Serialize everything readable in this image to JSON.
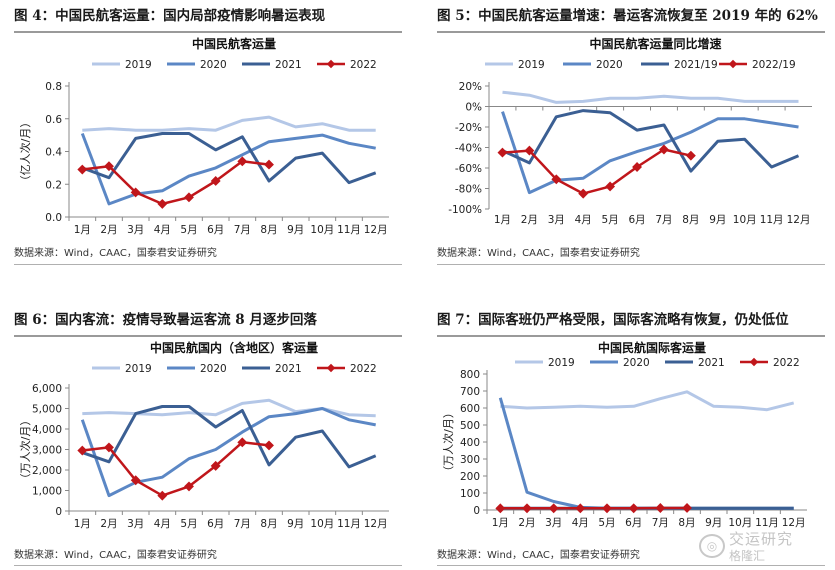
{
  "panels": [
    {
      "figure_title": "图 4：中国民航客运量：国内局部疫情影响暑运表现",
      "source": "数据来源：Wind，CAAC，国泰君安证券研究",
      "chart_data": {
        "type": "line",
        "title": "中国民航客运量",
        "xlabel": "",
        "ylabel": "（亿人次/月）",
        "categories": [
          "1月",
          "2月",
          "3月",
          "4月",
          "5月",
          "6月",
          "7月",
          "8月",
          "9月",
          "10月",
          "11月",
          "12月"
        ],
        "ylim": [
          0,
          0.8
        ],
        "yticks": [
          "0.0",
          "0.2",
          "0.4",
          "0.6",
          "0.8"
        ],
        "ytick_values": [
          0,
          0.2,
          0.4,
          0.6,
          0.8
        ],
        "grid": false,
        "legend": "top",
        "series": [
          {
            "name": "2019",
            "color": "#b4c7e7",
            "marker": false,
            "values": [
              0.53,
              0.54,
              0.53,
              0.53,
              0.54,
              0.53,
              0.59,
              0.61,
              0.55,
              0.57,
              0.53,
              0.53
            ]
          },
          {
            "name": "2020",
            "color": "#5b87c5",
            "marker": false,
            "values": [
              0.51,
              0.08,
              0.14,
              0.16,
              0.25,
              0.3,
              0.38,
              0.46,
              0.48,
              0.5,
              0.45,
              0.42
            ]
          },
          {
            "name": "2021",
            "color": "#3b5f93",
            "marker": false,
            "values": [
              0.3,
              0.24,
              0.48,
              0.51,
              0.51,
              0.41,
              0.49,
              0.22,
              0.36,
              0.39,
              0.21,
              0.27
            ]
          },
          {
            "name": "2022",
            "color": "#c0161b",
            "marker": true,
            "values": [
              0.29,
              0.31,
              0.15,
              0.08,
              0.12,
              0.22,
              0.34,
              0.32,
              null,
              null,
              null,
              null
            ]
          }
        ]
      }
    },
    {
      "figure_title": "图 5：中国民航客运量增速：暑运客流恢复至 2019 年的 62%",
      "source": "数据来源：Wind，CAAC，国泰君安证券研究",
      "chart_data": {
        "type": "line",
        "title": "中国民航客运量同比增速",
        "xlabel": "",
        "ylabel": "",
        "categories": [
          "1月",
          "2月",
          "3月",
          "4月",
          "5月",
          "6月",
          "7月",
          "8月",
          "9月",
          "10月",
          "11月",
          "12月"
        ],
        "ylim": [
          -100,
          20
        ],
        "yticks": [
          "20%",
          "0%",
          "-20%",
          "-40%",
          "-60%",
          "-80%",
          "-100%"
        ],
        "ytick_values": [
          20,
          0,
          -20,
          -40,
          -60,
          -80,
          -100
        ],
        "grid": false,
        "legend": "top",
        "series": [
          {
            "name": "2019",
            "color": "#b4c7e7",
            "marker": false,
            "values": [
              14,
              11,
              4,
              5,
              8,
              8,
              10,
              8,
              8,
              5,
              5,
              5
            ]
          },
          {
            "name": "2020",
            "color": "#5b87c5",
            "marker": false,
            "values": [
              -5,
              -84,
              -72,
              -70,
              -53,
              -44,
              -36,
              -25,
              -12,
              -12,
              -16,
              -20
            ]
          },
          {
            "name": "2021/19",
            "color": "#3b5f93",
            "marker": false,
            "values": [
              -43,
              -55,
              -10,
              -4,
              -6,
              -23,
              -18,
              -63,
              -34,
              -32,
              -59,
              -48
            ]
          },
          {
            "name": "2022/19",
            "color": "#c0161b",
            "marker": true,
            "values": [
              -45,
              -43,
              -71,
              -85,
              -78,
              -59,
              -42,
              -48,
              null,
              null,
              null,
              null
            ]
          }
        ]
      }
    },
    {
      "figure_title": "图 6：国内客流：疫情导致暑运客流 8 月逐步回落",
      "source": "数据来源：Wind，CAAC，国泰君安证券研究",
      "chart_data": {
        "type": "line",
        "title": "中国民航国内（含地区）客运量",
        "xlabel": "",
        "ylabel": "（万人次/月）",
        "categories": [
          "1月",
          "2月",
          "3月",
          "4月",
          "5月",
          "6月",
          "7月",
          "8月",
          "9月",
          "10月",
          "11月",
          "12月"
        ],
        "ylim": [
          0,
          6000
        ],
        "yticks": [
          "0",
          "1,000",
          "2,000",
          "3,000",
          "4,000",
          "5,000",
          "6,000"
        ],
        "ytick_values": [
          0,
          1000,
          2000,
          3000,
          4000,
          5000,
          6000
        ],
        "grid": false,
        "legend": "top",
        "series": [
          {
            "name": "2019",
            "color": "#b4c7e7",
            "marker": false,
            "values": [
              4750,
              4800,
              4750,
              4700,
              4800,
              4700,
              5250,
              5400,
              4850,
              5000,
              4700,
              4650
            ]
          },
          {
            "name": "2020",
            "color": "#5b87c5",
            "marker": false,
            "values": [
              4450,
              750,
              1400,
              1650,
              2550,
              3000,
              3850,
              4600,
              4750,
              5000,
              4450,
              4200
            ]
          },
          {
            "name": "2021",
            "color": "#3b5f93",
            "marker": false,
            "values": [
              2850,
              2400,
              4750,
              5100,
              5100,
              4100,
              4900,
              2250,
              3600,
              3900,
              2150,
              2700
            ]
          },
          {
            "name": "2022",
            "color": "#c0161b",
            "marker": true,
            "values": [
              2950,
              3100,
              1500,
              750,
              1200,
              2200,
              3350,
              3200,
              null,
              null,
              null,
              null
            ]
          }
        ]
      }
    },
    {
      "figure_title": "图 7：国际客班仍严格受限，国际客流略有恢复，仍处低位",
      "source": "数据来源：Wind，CAAC，国泰君安证券研究",
      "chart_data": {
        "type": "line",
        "title": "中国民航国际客运量",
        "xlabel": "",
        "ylabel": "（万人次/月）",
        "categories": [
          "1月",
          "2月",
          "3月",
          "4月",
          "5月",
          "6月",
          "7月",
          "8月",
          "9月",
          "10月",
          "11月",
          "12月"
        ],
        "ylim": [
          0,
          800
        ],
        "yticks": [
          "0",
          "100",
          "200",
          "300",
          "400",
          "500",
          "600",
          "700",
          "800"
        ],
        "ytick_values": [
          0,
          100,
          200,
          300,
          400,
          500,
          600,
          700,
          800
        ],
        "grid": false,
        "legend": "top",
        "series": [
          {
            "name": "2019",
            "color": "#b4c7e7",
            "marker": false,
            "values": [
              610,
              600,
              605,
              610,
              605,
              610,
              655,
              695,
              610,
              605,
              590,
              630
            ]
          },
          {
            "name": "2020",
            "color": "#5b87c5",
            "marker": false,
            "values": [
              660,
              105,
              50,
              15,
              10,
              10,
              10,
              10,
              10,
              10,
              10,
              10
            ]
          },
          {
            "name": "2021",
            "color": "#3b5f93",
            "marker": false,
            "values": [
              10,
              10,
              10,
              10,
              10,
              10,
              10,
              10,
              10,
              10,
              10,
              10
            ]
          },
          {
            "name": "2022",
            "color": "#c0161b",
            "marker": true,
            "values": [
              10,
              10,
              10,
              10,
              10,
              10,
              12,
              12,
              null,
              null,
              null,
              null
            ]
          }
        ]
      }
    }
  ],
  "watermark": {
    "line1": "交运研究",
    "line2": "格隆汇"
  }
}
